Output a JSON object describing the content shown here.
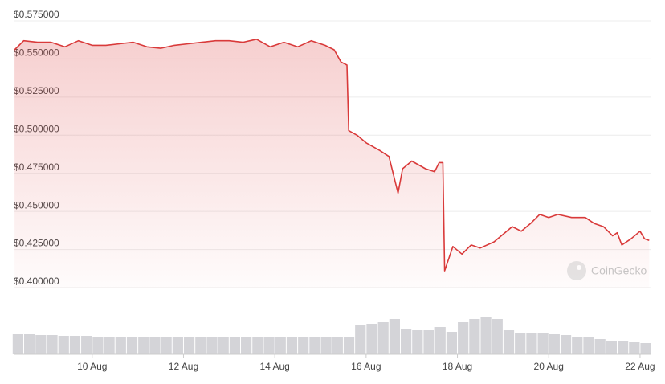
{
  "chart_data": {
    "type": "line",
    "x": [
      8.3,
      8.5,
      8.8,
      9.1,
      9.4,
      9.7,
      10.0,
      10.3,
      10.6,
      10.9,
      11.2,
      11.5,
      11.8,
      12.1,
      12.4,
      12.7,
      13.0,
      13.3,
      13.6,
      13.9,
      14.2,
      14.5,
      14.8,
      15.1,
      15.3,
      15.45,
      15.58,
      15.62,
      15.8,
      16.0,
      16.3,
      16.5,
      16.7,
      16.8,
      17.0,
      17.3,
      17.5,
      17.6,
      17.68,
      17.72,
      17.9,
      18.1,
      18.3,
      18.5,
      18.8,
      19.0,
      19.2,
      19.4,
      19.6,
      19.8,
      20.0,
      20.2,
      20.5,
      20.8,
      21.0,
      21.2,
      21.4,
      21.5,
      21.6,
      21.8,
      22.0,
      22.1,
      22.2
    ],
    "series": [
      {
        "color": "#d93a3a",
        "values": [
          0.556,
          0.562,
          0.561,
          0.561,
          0.558,
          0.562,
          0.559,
          0.559,
          0.56,
          0.561,
          0.558,
          0.557,
          0.559,
          0.56,
          0.561,
          0.562,
          0.562,
          0.561,
          0.563,
          0.558,
          0.561,
          0.558,
          0.562,
          0.559,
          0.556,
          0.548,
          0.546,
          0.503,
          0.5,
          0.495,
          0.49,
          0.486,
          0.462,
          0.478,
          0.483,
          0.478,
          0.476,
          0.482,
          0.482,
          0.411,
          0.427,
          0.422,
          0.428,
          0.426,
          0.43,
          0.435,
          0.44,
          0.437,
          0.442,
          0.448,
          0.446,
          0.448,
          0.446,
          0.446,
          0.442,
          0.44,
          0.434,
          0.436,
          0.428,
          0.432,
          0.437,
          0.432,
          0.431
        ]
      }
    ],
    "xlim": [
      8.28,
      22.23
    ],
    "xticks": [
      {
        "value": 10,
        "label": "10 Aug"
      },
      {
        "value": 12,
        "label": "12 Aug"
      },
      {
        "value": 14,
        "label": "14 Aug"
      },
      {
        "value": 16,
        "label": "16 Aug"
      },
      {
        "value": 18,
        "label": "18 Aug"
      },
      {
        "value": 20,
        "label": "20 Aug"
      },
      {
        "value": 22,
        "label": "22 Aug"
      }
    ],
    "ylim": [
      0.4,
      0.575
    ],
    "yticks": [
      {
        "value": 0.4,
        "label": "$0.400000"
      },
      {
        "value": 0.425,
        "label": "$0.425000"
      },
      {
        "value": 0.45,
        "label": "$0.450000"
      },
      {
        "value": 0.475,
        "label": "$0.475000"
      },
      {
        "value": 0.5,
        "label": "$0.500000"
      },
      {
        "value": 0.525,
        "label": "$0.525000"
      },
      {
        "value": 0.55,
        "label": "$0.550000"
      },
      {
        "value": 0.575,
        "label": "$0.575000"
      }
    ],
    "grid": true,
    "watermark": "CoinGecko",
    "volume": {
      "color": "#d4d4d8",
      "x": [
        8.375,
        8.625,
        8.875,
        9.125,
        9.375,
        9.625,
        9.875,
        10.125,
        10.375,
        10.625,
        10.875,
        11.125,
        11.375,
        11.625,
        11.875,
        12.125,
        12.375,
        12.625,
        12.875,
        13.125,
        13.375,
        13.625,
        13.875,
        14.125,
        14.375,
        14.625,
        14.875,
        15.125,
        15.375,
        15.625,
        15.875,
        16.125,
        16.375,
        16.625,
        16.875,
        17.125,
        17.375,
        17.625,
        17.875,
        18.125,
        18.375,
        18.625,
        18.875,
        19.125,
        19.375,
        19.625,
        19.875,
        20.125,
        20.375,
        20.625,
        20.875,
        21.125,
        21.375,
        21.625,
        21.875,
        22.125
      ],
      "values": [
        25,
        25,
        24,
        24,
        23,
        23,
        23,
        22,
        22,
        22,
        22,
        22,
        21,
        21,
        22,
        22,
        21,
        21,
        22,
        22,
        21,
        21,
        22,
        22,
        22,
        21,
        21,
        22,
        21,
        22,
        36,
        38,
        40,
        44,
        32,
        30,
        30,
        34,
        28,
        40,
        44,
        46,
        44,
        30,
        27,
        27,
        26,
        25,
        24,
        22,
        21,
        19,
        17,
        16,
        15,
        14
      ]
    }
  }
}
